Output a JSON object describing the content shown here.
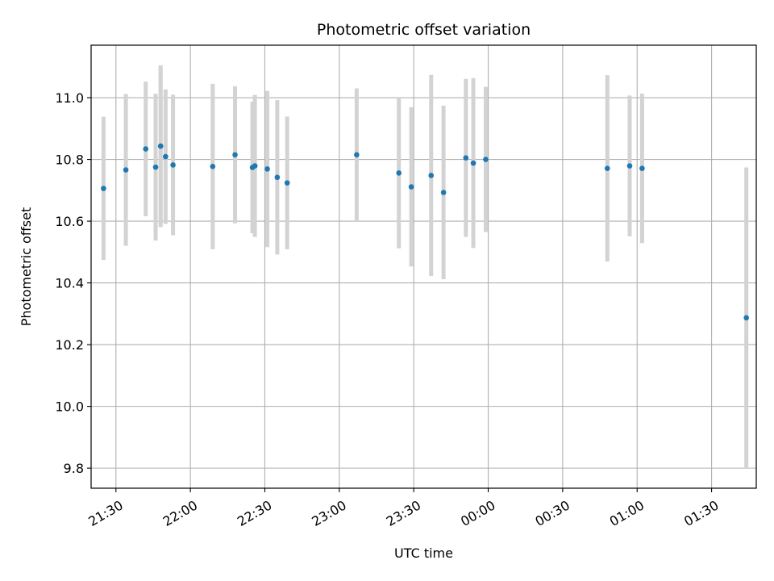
{
  "chart_data": {
    "type": "scatter",
    "title": "Photometric offset variation",
    "xlabel": "UTC time",
    "ylabel": "Photometric offset",
    "x_axis": "time",
    "xlim": [
      "21:20",
      "01:48"
    ],
    "ylim": [
      9.735,
      11.17
    ],
    "x_ticks": [
      "21:30",
      "22:00",
      "22:30",
      "23:00",
      "23:30",
      "00:00",
      "00:30",
      "01:00",
      "01:30"
    ],
    "y_ticks": [
      9.8,
      10.0,
      10.2,
      10.4,
      10.6,
      10.8,
      11.0
    ],
    "y_tick_labels": [
      "9.8",
      "10.0",
      "10.2",
      "10.4",
      "10.6",
      "10.8",
      "11.0"
    ],
    "grid": true,
    "colors": {
      "point": "#1f77b4",
      "errorbar": "#d3d3d3",
      "grid": "#b0b0b0"
    },
    "points": [
      {
        "x": "21:25",
        "y": 10.706,
        "err": 0.232
      },
      {
        "x": "21:34",
        "y": 10.766,
        "err": 0.246
      },
      {
        "x": "21:42",
        "y": 10.834,
        "err": 0.218
      },
      {
        "x": "21:46",
        "y": 10.775,
        "err": 0.238
      },
      {
        "x": "21:48",
        "y": 10.843,
        "err": 0.254
      },
      {
        "x": "21:48",
        "y": 10.843,
        "err": 0.262
      },
      {
        "x": "21:50",
        "y": 10.809,
        "err": 0.218
      },
      {
        "x": "21:53",
        "y": 10.782,
        "err": 0.228
      },
      {
        "x": "22:09",
        "y": 10.777,
        "err": 0.268
      },
      {
        "x": "22:18",
        "y": 10.815,
        "err": 0.222
      },
      {
        "x": "22:25",
        "y": 10.774,
        "err": 0.213
      },
      {
        "x": "22:26",
        "y": 10.779,
        "err": 0.23
      },
      {
        "x": "22:31",
        "y": 10.769,
        "err": 0.253
      },
      {
        "x": "22:35",
        "y": 10.742,
        "err": 0.25
      },
      {
        "x": "22:39",
        "y": 10.724,
        "err": 0.215
      },
      {
        "x": "23:07",
        "y": 10.815,
        "err": 0.215
      },
      {
        "x": "23:24",
        "y": 10.756,
        "err": 0.244
      },
      {
        "x": "23:29",
        "y": 10.711,
        "err": 0.258
      },
      {
        "x": "23:37",
        "y": 10.748,
        "err": 0.326
      },
      {
        "x": "23:42",
        "y": 10.693,
        "err": 0.281
      },
      {
        "x": "23:51",
        "y": 10.805,
        "err": 0.256
      },
      {
        "x": "23:54",
        "y": 10.788,
        "err": 0.275
      },
      {
        "x": "23:59",
        "y": 10.8,
        "err": 0.235
      },
      {
        "x": "00:48",
        "y": 10.771,
        "err": 0.302
      },
      {
        "x": "00:57",
        "y": 10.779,
        "err": 0.228
      },
      {
        "x": "01:02",
        "y": 10.771,
        "err": 0.242
      },
      {
        "x": "01:44",
        "y": 10.287,
        "err": 0.487
      }
    ]
  }
}
